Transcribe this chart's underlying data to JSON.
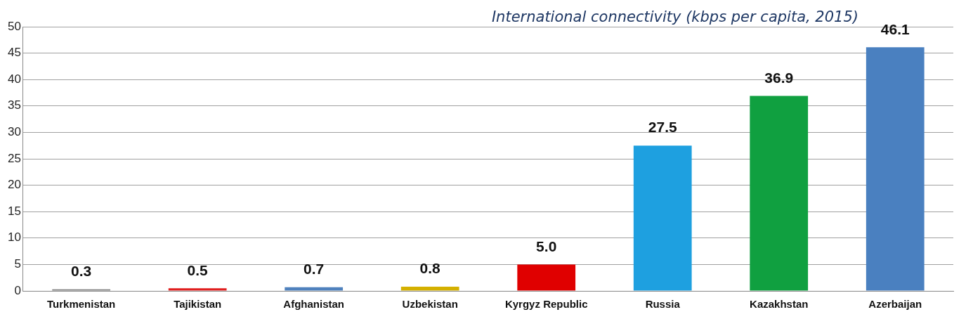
{
  "chart_data": {
    "type": "bar",
    "title": "International connectivity (kbps per capita, 2015)",
    "categories": [
      "Turkmenistan",
      "Tajikistan",
      "Afghanistan",
      "Uzbekistan",
      "Kyrgyz Republic",
      "Russia",
      "Kazakhstan",
      "Azerbaijan"
    ],
    "values": [
      0.3,
      0.5,
      0.7,
      0.8,
      5,
      27.5,
      36.9,
      46.1
    ],
    "value_labels": [
      "0.3",
      "0.5",
      "0.7",
      "0.8",
      "5.0",
      "27.5",
      "36.9",
      "46.1"
    ],
    "colors": [
      "#7f7f7f",
      "#e02020",
      "#4f81bd",
      "#d4b000",
      "#e00000",
      "#1ea0e0",
      "#10a040",
      "#4a80c0"
    ],
    "ylim": [
      0,
      50
    ],
    "yticks": [
      0,
      5,
      10,
      15,
      20,
      25,
      30,
      35,
      40,
      45,
      50
    ],
    "grid": "y"
  }
}
